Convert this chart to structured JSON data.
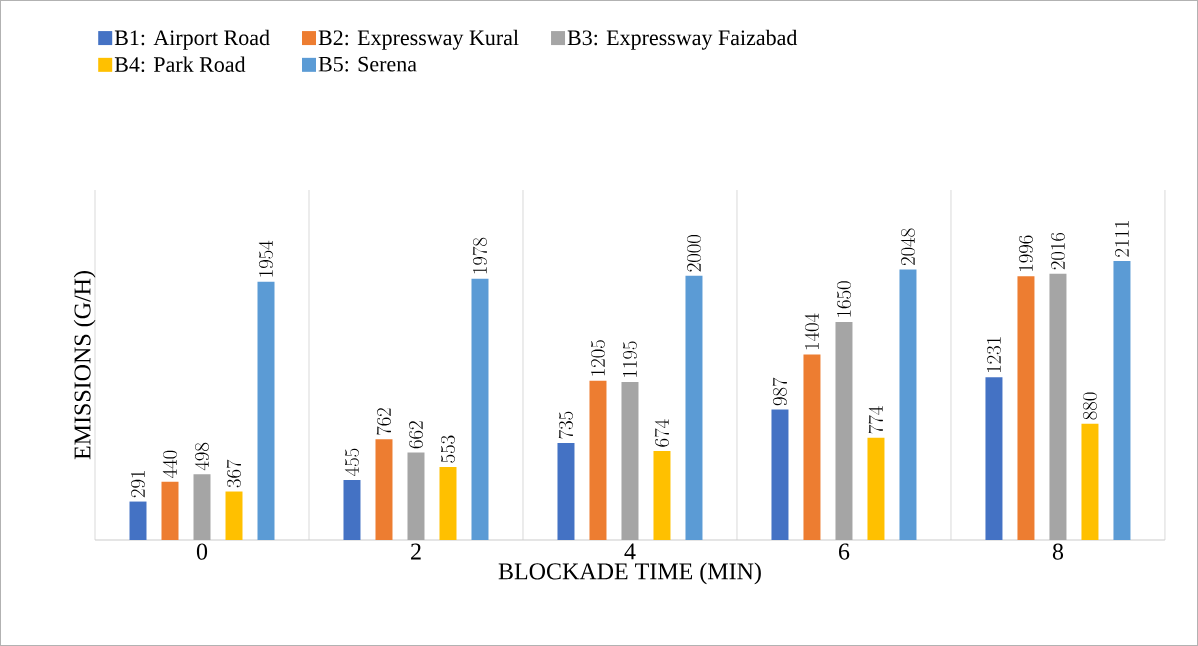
{
  "chart_data": {
    "type": "bar",
    "xlabel": "BLOCKADE TIME (MIN)",
    "ylabel": "EMISSIONS (G/H)",
    "categories": [
      "0",
      "2",
      "4",
      "6",
      "8"
    ],
    "series": [
      {
        "name": "B1: Airport Road",
        "color": "#4472c4",
        "values": [
          291,
          455,
          735,
          987,
          1231
        ]
      },
      {
        "name": "B2: Expressway Kural",
        "color": "#ed7d31",
        "values": [
          440,
          762,
          1205,
          1404,
          1996
        ]
      },
      {
        "name": "B3: Expressway Faizabad",
        "color": "#a5a5a5",
        "values": [
          498,
          662,
          1195,
          1650,
          2016
        ]
      },
      {
        "name": "B4: Park Road",
        "color": "#ffc000",
        "values": [
          367,
          553,
          674,
          774,
          880
        ]
      },
      {
        "name": "B5: Serena",
        "color": "#5b9bd5",
        "values": [
          1954,
          1978,
          2000,
          2048,
          2111
        ]
      }
    ],
    "data_labels": true,
    "legend": "top",
    "grid": "x"
  }
}
